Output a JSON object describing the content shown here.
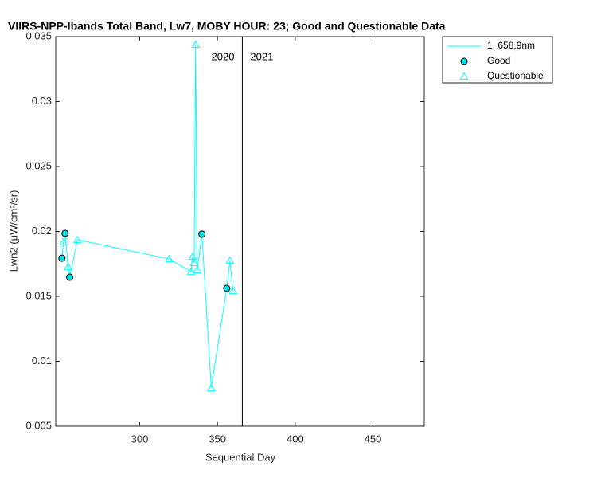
{
  "chart_data": {
    "type": "line",
    "title": "VIIRS-NPP-Ibands Total Band, Lw7, MOBY HOUR: 23;  Good and Questionable Data",
    "x_label": "Sequential Day",
    "y_label": "Lwn2 (μW/cm²/sr)",
    "xlim": [
      246,
      483
    ],
    "ylim": [
      0.005,
      0.035
    ],
    "xticks": [
      300,
      350,
      400,
      450
    ],
    "yticks": [
      0.005,
      0.01,
      0.015,
      0.02,
      0.025,
      0.03,
      0.035
    ],
    "year_divider": 366,
    "year_labels": [
      "2020",
      "2021"
    ],
    "legend_position": "outside-top-right",
    "series": [
      {
        "name": "1, 658.9nm",
        "color": "#00ffff",
        "marker": "none",
        "x": [
          250,
          251,
          252,
          254,
          255,
          260,
          319,
          333,
          334,
          335,
          336,
          337,
          340,
          346,
          356,
          358,
          360
        ],
        "values": [
          0.01794,
          0.01917,
          0.01985,
          0.01727,
          0.01647,
          0.01936,
          0.01788,
          0.0169,
          0.01807,
          0.01758,
          0.03439,
          0.01703,
          0.01979,
          0.00795,
          0.01561,
          0.01776,
          0.01543
        ]
      },
      {
        "name": "Good",
        "color": "#00e0e0",
        "marker": "circle",
        "x": [
          250,
          252,
          255,
          340,
          356
        ],
        "values": [
          0.01794,
          0.01985,
          0.01647,
          0.01979,
          0.01561
        ]
      },
      {
        "name": "Questionable",
        "color": "#00ffff",
        "marker": "triangle",
        "x": [
          251,
          254,
          260,
          319,
          333,
          334,
          335,
          336,
          337,
          346,
          358,
          360
        ],
        "values": [
          0.01917,
          0.01727,
          0.01936,
          0.01788,
          0.0169,
          0.01807,
          0.01758,
          0.03439,
          0.01703,
          0.00795,
          0.01776,
          0.01543
        ]
      }
    ]
  }
}
